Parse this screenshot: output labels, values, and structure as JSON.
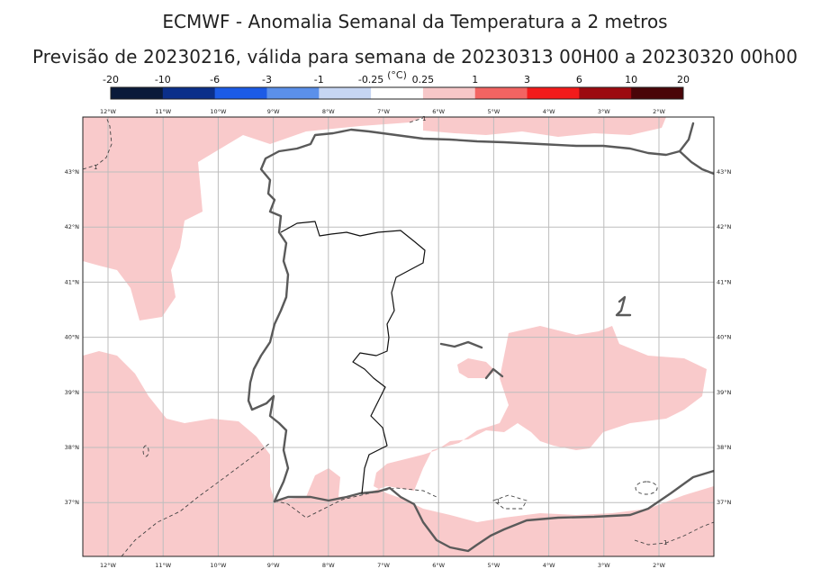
{
  "title_line1": "ECMWF - Anomalia Semanal da Temperatura a 2 metros",
  "title_line2": "Previsão de 20230216, válida para semana de 20230313 00H00 a 20230320 00h00",
  "colorbar": {
    "unit": "(°C)",
    "colors": [
      "#0a1a3a",
      "#0b2f8a",
      "#1c5be6",
      "#5b90ea",
      "#c6d6f3",
      "#ffffff",
      "#f7c7c8",
      "#f26462",
      "#f31b1b",
      "#9c0a10",
      "#4a0508"
    ],
    "ticks": [
      "-20",
      "-10",
      "-6",
      "-3",
      "-1",
      "-0.25",
      "0.25",
      "1",
      "3",
      "6",
      "10",
      "20"
    ]
  },
  "map": {
    "lon_labels": [
      "12°W",
      "11°W",
      "10°W",
      "9°W",
      "8°W",
      "7°W",
      "6°W",
      "5°W",
      "4°W",
      "3°W",
      "2°W"
    ],
    "lat_labels": [
      "43°N",
      "42°N",
      "41°N",
      "40°N",
      "39°N",
      "38°N",
      "37°N"
    ],
    "contour_labels": [
      "1",
      "1",
      "1",
      "1"
    ],
    "anomaly_fill": "#f9cacb",
    "coast_color": "#5a5a5a",
    "grid_color": "#bdbdbd"
  }
}
